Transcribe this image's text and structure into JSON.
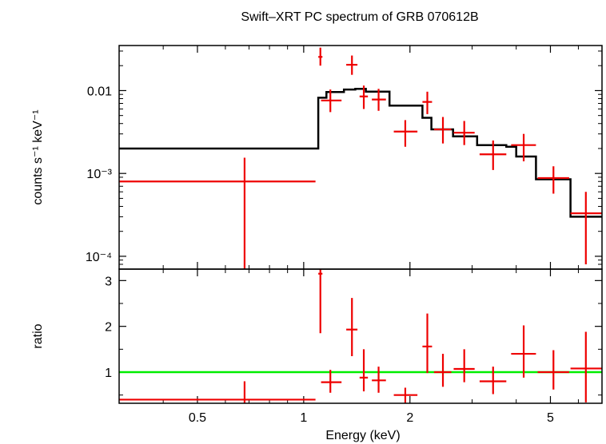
{
  "chart_data": [
    {
      "type": "line",
      "panel": "spectrum",
      "title": "Swift–XRT PC spectrum of GRB 070612B",
      "xlabel": "Energy (keV)",
      "ylabel": "counts s⁻¹ keV⁻¹",
      "xscale": "log",
      "yscale": "log",
      "xlim": [
        0.3,
        7.0
      ],
      "ylim": [
        7e-05,
        0.035
      ],
      "yticks": [
        {
          "value": 0.01,
          "label": "0.01"
        },
        {
          "value": 0.001,
          "label": "10⁻³"
        },
        {
          "value": 0.0001,
          "label": "10⁻⁴"
        }
      ],
      "data_color": "#ee0000",
      "model_color": "#000000",
      "series": [
        {
          "kind": "data",
          "points": [
            {
              "x": 0.68,
              "xlo": 0.3,
              "xhi": 1.08,
              "y": 0.0008,
              "ylo": 7e-05,
              "yhi": 0.00155
            },
            {
              "x": 1.115,
              "xlo": 1.1,
              "xhi": 1.13,
              "y": 0.0255,
              "ylo": 0.02,
              "yhi": 0.033
            },
            {
              "x": 1.19,
              "xlo": 1.12,
              "xhi": 1.28,
              "y": 0.0076,
              "ylo": 0.0055,
              "yhi": 0.0103
            },
            {
              "x": 1.37,
              "xlo": 1.32,
              "xhi": 1.42,
              "y": 0.0205,
              "ylo": 0.0155,
              "yhi": 0.0265
            },
            {
              "x": 1.48,
              "xlo": 1.44,
              "xhi": 1.52,
              "y": 0.0085,
              "ylo": 0.006,
              "yhi": 0.0115
            },
            {
              "x": 1.63,
              "xlo": 1.56,
              "xhi": 1.71,
              "y": 0.0078,
              "ylo": 0.0057,
              "yhi": 0.0105
            },
            {
              "x": 1.94,
              "xlo": 1.8,
              "xhi": 2.1,
              "y": 0.0032,
              "ylo": 0.0021,
              "yhi": 0.0044
            },
            {
              "x": 2.24,
              "xlo": 2.17,
              "xhi": 2.31,
              "y": 0.0073,
              "ylo": 0.0052,
              "yhi": 0.0097
            },
            {
              "x": 2.48,
              "xlo": 2.34,
              "xhi": 2.62,
              "y": 0.0034,
              "ylo": 0.0023,
              "yhi": 0.0048
            },
            {
              "x": 2.85,
              "xlo": 2.66,
              "xhi": 3.05,
              "y": 0.0031,
              "ylo": 0.0022,
              "yhi": 0.0043
            },
            {
              "x": 3.44,
              "xlo": 3.15,
              "xhi": 3.75,
              "y": 0.0017,
              "ylo": 0.0011,
              "yhi": 0.0025
            },
            {
              "x": 4.2,
              "xlo": 3.87,
              "xhi": 4.55,
              "y": 0.0022,
              "ylo": 0.0014,
              "yhi": 0.003
            },
            {
              "x": 5.1,
              "xlo": 4.6,
              "xhi": 5.65,
              "y": 0.00088,
              "ylo": 0.00057,
              "yhi": 0.00122
            },
            {
              "x": 6.3,
              "xlo": 5.7,
              "xhi": 7.0,
              "y": 0.00033,
              "ylo": 8e-05,
              "yhi": 0.0006
            }
          ]
        },
        {
          "kind": "model",
          "steps": [
            {
              "x0": 0.3,
              "x1": 1.1,
              "y": 0.002
            },
            {
              "x0": 1.1,
              "x1": 1.16,
              "y": 0.0082
            },
            {
              "x0": 1.16,
              "x1": 1.3,
              "y": 0.0096
            },
            {
              "x0": 1.3,
              "x1": 1.4,
              "y": 0.0103
            },
            {
              "x0": 1.4,
              "x1": 1.5,
              "y": 0.0105
            },
            {
              "x0": 1.5,
              "x1": 1.75,
              "y": 0.0097
            },
            {
              "x0": 1.75,
              "x1": 2.17,
              "y": 0.0066
            },
            {
              "x0": 2.17,
              "x1": 2.3,
              "y": 0.0047
            },
            {
              "x0": 2.3,
              "x1": 2.65,
              "y": 0.0034
            },
            {
              "x0": 2.65,
              "x1": 3.1,
              "y": 0.0028
            },
            {
              "x0": 3.1,
              "x1": 3.75,
              "y": 0.0022
            },
            {
              "x0": 3.75,
              "x1": 4.0,
              "y": 0.0021
            },
            {
              "x0": 4.0,
              "x1": 4.55,
              "y": 0.0016
            },
            {
              "x0": 4.55,
              "x1": 5.7,
              "y": 0.00085
            },
            {
              "x0": 5.7,
              "x1": 7.0,
              "y": 0.0003
            }
          ]
        }
      ]
    },
    {
      "type": "scatter",
      "panel": "ratio",
      "xlabel": "Energy (keV)",
      "ylabel": "ratio",
      "xscale": "log",
      "xlim": [
        0.3,
        7.0
      ],
      "ylim": [
        0.32,
        3.25
      ],
      "yticks": [
        {
          "value": 1,
          "label": "1"
        },
        {
          "value": 2,
          "label": "2"
        },
        {
          "value": 3,
          "label": "3"
        }
      ],
      "xticks": [
        {
          "value": 0.5,
          "label": "0.5"
        },
        {
          "value": 1,
          "label": "1"
        },
        {
          "value": 2,
          "label": "2"
        },
        {
          "value": 5,
          "label": "5"
        }
      ],
      "reference_line": {
        "y": 1,
        "color": "#00ee00"
      },
      "data_color": "#ee0000",
      "points": [
        {
          "x": 0.68,
          "xlo": 0.3,
          "xhi": 1.08,
          "y": 0.4,
          "ylo": 0.32,
          "yhi": 0.8
        },
        {
          "x": 1.115,
          "xlo": 1.1,
          "xhi": 1.13,
          "y": 3.15,
          "ylo": 1.85,
          "yhi": 3.25
        },
        {
          "x": 1.19,
          "xlo": 1.12,
          "xhi": 1.28,
          "y": 0.78,
          "ylo": 0.55,
          "yhi": 1.05
        },
        {
          "x": 1.37,
          "xlo": 1.32,
          "xhi": 1.42,
          "y": 1.93,
          "ylo": 1.35,
          "yhi": 2.62
        },
        {
          "x": 1.48,
          "xlo": 1.44,
          "xhi": 1.52,
          "y": 0.88,
          "ylo": 0.58,
          "yhi": 1.5
        },
        {
          "x": 1.63,
          "xlo": 1.56,
          "xhi": 1.71,
          "y": 0.82,
          "ylo": 0.55,
          "yhi": 1.12
        },
        {
          "x": 1.94,
          "xlo": 1.8,
          "xhi": 2.1,
          "y": 0.5,
          "ylo": 0.32,
          "yhi": 0.66
        },
        {
          "x": 2.24,
          "xlo": 2.17,
          "xhi": 2.31,
          "y": 1.56,
          "ylo": 0.98,
          "yhi": 2.28
        },
        {
          "x": 2.48,
          "xlo": 2.34,
          "xhi": 2.62,
          "y": 1.0,
          "ylo": 0.68,
          "yhi": 1.4
        },
        {
          "x": 2.85,
          "xlo": 2.66,
          "xhi": 3.05,
          "y": 1.07,
          "ylo": 0.78,
          "yhi": 1.5
        },
        {
          "x": 3.44,
          "xlo": 3.15,
          "xhi": 3.75,
          "y": 0.8,
          "ylo": 0.52,
          "yhi": 1.12
        },
        {
          "x": 4.2,
          "xlo": 3.87,
          "xhi": 4.55,
          "y": 1.4,
          "ylo": 0.88,
          "yhi": 2.02
        },
        {
          "x": 5.1,
          "xlo": 4.6,
          "xhi": 5.65,
          "y": 1.0,
          "ylo": 0.62,
          "yhi": 1.48
        },
        {
          "x": 6.3,
          "xlo": 5.7,
          "xhi": 7.0,
          "y": 1.08,
          "ylo": 0.34,
          "yhi": 1.88
        }
      ]
    }
  ]
}
